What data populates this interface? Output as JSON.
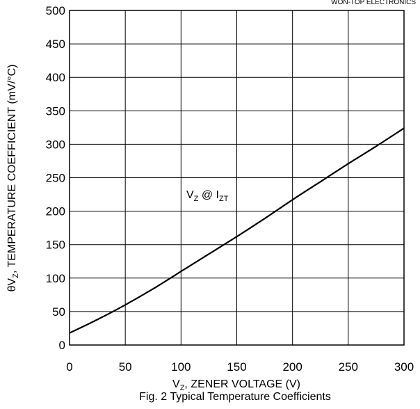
{
  "header_text": "WON-TOP ELECTRONICS",
  "caption": "Fig. 2 Typical Temperature Coefficients",
  "chart_data": {
    "type": "line",
    "title": "",
    "xlabel": {
      "main": "V",
      "sub": "Z",
      "rest": ", ZENER VOLTAGE (V)"
    },
    "ylabel": {
      "prefix": "θV",
      "sub": "Z",
      "rest": ", TEMPERATURE COEFFICIENT (mV/°C)"
    },
    "xlim": [
      0,
      300
    ],
    "ylim": [
      0,
      500
    ],
    "xticks": [
      0,
      50,
      100,
      150,
      200,
      250,
      300
    ],
    "yticks": [
      0,
      50,
      100,
      150,
      200,
      250,
      300,
      350,
      400,
      450,
      500
    ],
    "grid": true,
    "series": [
      {
        "x": [
          0,
          25,
          50,
          75,
          100,
          125,
          150,
          175,
          200,
          225,
          250,
          275,
          300
        ],
        "values": [
          18,
          38,
          60,
          84,
          110,
          136,
          162,
          189,
          217,
          244,
          271,
          297,
          324
        ]
      }
    ],
    "annotation": {
      "main": "V",
      "sub1": "Z",
      "mid": " @ I",
      "sub2": "ZT"
    }
  }
}
